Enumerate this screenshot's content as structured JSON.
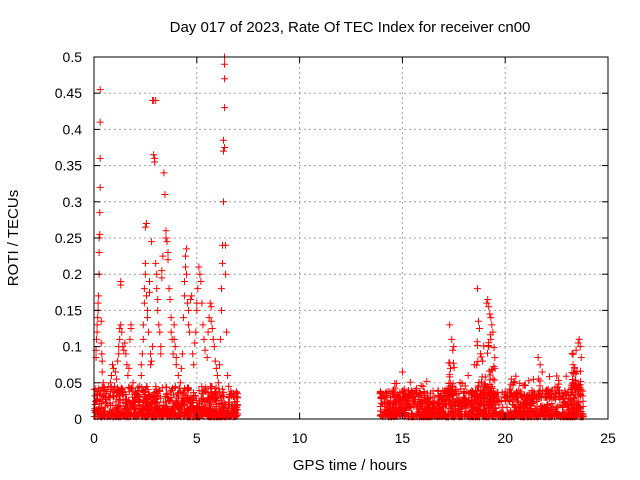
{
  "chart_data": {
    "type": "scatter",
    "title": "Day 017 of 2023, Rate Of TEC Index for receiver cn00",
    "xlabel": "GPS time / hours",
    "ylabel": "ROTI / TECUs",
    "xlim": [
      0,
      25
    ],
    "ylim": [
      0,
      0.5
    ],
    "xticks": [
      0,
      5,
      10,
      15,
      20,
      25
    ],
    "yticks": [
      0,
      0.05,
      0.1,
      0.15,
      0.2,
      0.25,
      0.3,
      0.35,
      0.4,
      0.45,
      0.5
    ],
    "grid": true,
    "marker": "+",
    "color": "#ff0000",
    "series": [
      {
        "points": [
          [
            0.05,
            0.02
          ],
          [
            0.1,
            0.085
          ],
          [
            0.1,
            0.095
          ],
          [
            0.12,
            0.11
          ],
          [
            0.15,
            0.12
          ],
          [
            0.15,
            0.13
          ],
          [
            0.18,
            0.14
          ],
          [
            0.2,
            0.15
          ],
          [
            0.2,
            0.16
          ],
          [
            0.22,
            0.17
          ],
          [
            0.25,
            0.2
          ],
          [
            0.25,
            0.23
          ],
          [
            0.25,
            0.25
          ],
          [
            0.28,
            0.255
          ],
          [
            0.28,
            0.285
          ],
          [
            0.3,
            0.32
          ],
          [
            0.3,
            0.36
          ],
          [
            0.3,
            0.41
          ],
          [
            0.3,
            0.455
          ],
          [
            0.35,
            0.135
          ],
          [
            0.35,
            0.105
          ],
          [
            0.38,
            0.09
          ],
          [
            0.4,
            0.08
          ],
          [
            0.4,
            0.065
          ],
          [
            0.45,
            0.05
          ],
          [
            0.5,
            0.04
          ],
          [
            0.55,
            0.03
          ],
          [
            0.6,
            0.035
          ],
          [
            0.7,
            0.03
          ],
          [
            0.8,
            0.05
          ],
          [
            0.85,
            0.06
          ],
          [
            0.9,
            0.075
          ],
          [
            0.95,
            0.07
          ],
          [
            1.0,
            0.045
          ],
          [
            1.05,
            0.065
          ],
          [
            1.1,
            0.055
          ],
          [
            1.15,
            0.08
          ],
          [
            1.2,
            0.09
          ],
          [
            1.2,
            0.1
          ],
          [
            1.25,
            0.11
          ],
          [
            1.25,
            0.125
          ],
          [
            1.3,
            0.13
          ],
          [
            1.3,
            0.19
          ],
          [
            1.3,
            0.185
          ],
          [
            1.35,
            0.12
          ],
          [
            1.4,
            0.1
          ],
          [
            1.45,
            0.095
          ],
          [
            1.5,
            0.105
          ],
          [
            1.55,
            0.09
          ],
          [
            1.6,
            0.075
          ],
          [
            1.65,
            0.06
          ],
          [
            1.7,
            0.07
          ],
          [
            1.75,
            0.11
          ],
          [
            1.8,
            0.125
          ],
          [
            1.8,
            0.13
          ],
          [
            1.9,
            0.05
          ],
          [
            2.0,
            0.035
          ],
          [
            2.1,
            0.03
          ],
          [
            2.2,
            0.045
          ],
          [
            2.3,
            0.06
          ],
          [
            2.3,
            0.075
          ],
          [
            2.35,
            0.09
          ],
          [
            2.4,
            0.11
          ],
          [
            2.4,
            0.13
          ],
          [
            2.45,
            0.16
          ],
          [
            2.45,
            0.18
          ],
          [
            2.5,
            0.2
          ],
          [
            2.5,
            0.215
          ],
          [
            2.5,
            0.265
          ],
          [
            2.55,
            0.27
          ],
          [
            2.55,
            0.17
          ],
          [
            2.6,
            0.15
          ],
          [
            2.6,
            0.14
          ],
          [
            2.65,
            0.12
          ],
          [
            2.7,
            0.19
          ],
          [
            2.7,
            0.175
          ],
          [
            2.75,
            0.09
          ],
          [
            2.75,
            0.075
          ],
          [
            2.8,
            0.245
          ],
          [
            2.8,
            0.08
          ],
          [
            2.85,
            0.1
          ],
          [
            2.85,
            0.44
          ],
          [
            2.9,
            0.44
          ],
          [
            2.9,
            0.365
          ],
          [
            2.95,
            0.36
          ],
          [
            2.95,
            0.355
          ],
          [
            3.0,
            0.44
          ],
          [
            3.0,
            0.215
          ],
          [
            3.05,
            0.2
          ],
          [
            3.05,
            0.18
          ],
          [
            3.1,
            0.165
          ],
          [
            3.1,
            0.15
          ],
          [
            3.15,
            0.13
          ],
          [
            3.2,
            0.12
          ],
          [
            3.25,
            0.1
          ],
          [
            3.25,
            0.09
          ],
          [
            3.3,
            0.205
          ],
          [
            3.3,
            0.195
          ],
          [
            3.35,
            0.225
          ],
          [
            3.4,
            0.34
          ],
          [
            3.45,
            0.31
          ],
          [
            3.5,
            0.26
          ],
          [
            3.5,
            0.25
          ],
          [
            3.55,
            0.245
          ],
          [
            3.6,
            0.23
          ],
          [
            3.6,
            0.22
          ],
          [
            3.65,
            0.18
          ],
          [
            3.7,
            0.165
          ],
          [
            3.75,
            0.14
          ],
          [
            3.75,
            0.12
          ],
          [
            3.8,
            0.11
          ],
          [
            3.85,
            0.09
          ],
          [
            3.9,
            0.13
          ],
          [
            3.9,
            0.11
          ],
          [
            3.95,
            0.1
          ],
          [
            4.0,
            0.085
          ],
          [
            4.0,
            0.075
          ],
          [
            4.1,
            0.06
          ],
          [
            4.2,
            0.05
          ],
          [
            4.25,
            0.07
          ],
          [
            4.3,
            0.09
          ],
          [
            4.35,
            0.14
          ],
          [
            4.4,
            0.17
          ],
          [
            4.4,
            0.19
          ],
          [
            4.45,
            0.21
          ],
          [
            4.45,
            0.225
          ],
          [
            4.5,
            0.235
          ],
          [
            4.5,
            0.2
          ],
          [
            4.55,
            0.16
          ],
          [
            4.6,
            0.15
          ],
          [
            4.6,
            0.13
          ],
          [
            4.65,
            0.12
          ],
          [
            4.7,
            0.165
          ],
          [
            4.75,
            0.17
          ],
          [
            4.8,
            0.09
          ],
          [
            4.85,
            0.075
          ],
          [
            4.9,
            0.105
          ],
          [
            4.95,
            0.12
          ],
          [
            5.0,
            0.15
          ],
          [
            5.0,
            0.16
          ],
          [
            5.05,
            0.18
          ],
          [
            5.1,
            0.21
          ],
          [
            5.15,
            0.2
          ],
          [
            5.2,
            0.19
          ],
          [
            5.25,
            0.16
          ],
          [
            5.3,
            0.13
          ],
          [
            5.35,
            0.11
          ],
          [
            5.4,
            0.095
          ],
          [
            5.5,
            0.085
          ],
          [
            5.55,
            0.12
          ],
          [
            5.6,
            0.14
          ],
          [
            5.65,
            0.16
          ],
          [
            5.7,
            0.155
          ],
          [
            5.7,
            0.135
          ],
          [
            5.75,
            0.125
          ],
          [
            5.8,
            0.11
          ],
          [
            5.85,
            0.1
          ],
          [
            5.9,
            0.08
          ],
          [
            5.95,
            0.07
          ],
          [
            6.0,
            0.06
          ],
          [
            6.05,
            0.05
          ],
          [
            6.1,
            0.075
          ],
          [
            6.15,
            0.11
          ],
          [
            6.2,
            0.15
          ],
          [
            6.2,
            0.18
          ],
          [
            6.25,
            0.215
          ],
          [
            6.25,
            0.24
          ],
          [
            6.3,
            0.3
          ],
          [
            6.3,
            0.37
          ],
          [
            6.3,
            0.385
          ],
          [
            6.35,
            0.375
          ],
          [
            6.35,
            0.43
          ],
          [
            6.35,
            0.47
          ],
          [
            6.35,
            0.49
          ],
          [
            6.35,
            0.5
          ],
          [
            6.4,
            0.24
          ],
          [
            6.4,
            0.2
          ],
          [
            6.45,
            0.12
          ],
          [
            6.5,
            0.06
          ],
          [
            6.55,
            0.045
          ],
          [
            6.6,
            0.03
          ],
          [
            6.7,
            0.02
          ],
          [
            6.8,
            0.015
          ],
          [
            6.9,
            0.012
          ]
        ]
      }
    ],
    "clusters": [
      {
        "x0": 0.0,
        "x1": 7.0,
        "y0": 0.003,
        "y1": 0.045,
        "n": 900
      },
      {
        "x0": 13.9,
        "x1": 23.8,
        "y0": 0.003,
        "y1": 0.04,
        "n": 1100
      },
      {
        "x0": 14.5,
        "x1": 19.5,
        "y0": 0.02,
        "y1": 0.055,
        "n": 120
      },
      {
        "x0": 17.2,
        "x1": 17.6,
        "y0": 0.03,
        "y1": 0.09,
        "n": 25
      },
      {
        "x0": 18.6,
        "x1": 19.5,
        "y0": 0.03,
        "y1": 0.12,
        "n": 40
      },
      {
        "x0": 20.0,
        "x1": 23.0,
        "y0": 0.03,
        "y1": 0.06,
        "n": 60
      },
      {
        "x0": 23.2,
        "x1": 23.7,
        "y0": 0.04,
        "y1": 0.1,
        "n": 40
      }
    ],
    "extra_points": [
      [
        14.0,
        0.035
      ],
      [
        15.0,
        0.065
      ],
      [
        16.0,
        0.045
      ],
      [
        17.3,
        0.13
      ],
      [
        17.4,
        0.11
      ],
      [
        17.45,
        0.095
      ],
      [
        17.5,
        0.1
      ],
      [
        18.2,
        0.06
      ],
      [
        18.5,
        0.075
      ],
      [
        18.65,
        0.18
      ],
      [
        18.7,
        0.135
      ],
      [
        18.75,
        0.125
      ],
      [
        18.8,
        0.09
      ],
      [
        18.9,
        0.08
      ],
      [
        19.1,
        0.16
      ],
      [
        19.15,
        0.165
      ],
      [
        19.2,
        0.155
      ],
      [
        19.25,
        0.145
      ],
      [
        19.3,
        0.14
      ],
      [
        19.35,
        0.13
      ],
      [
        19.4,
        0.12
      ],
      [
        19.3,
        0.11
      ],
      [
        19.2,
        0.1
      ],
      [
        19.5,
        0.07
      ],
      [
        20.3,
        0.055
      ],
      [
        21.6,
        0.085
      ],
      [
        21.7,
        0.075
      ],
      [
        21.8,
        0.065
      ],
      [
        23.3,
        0.075
      ],
      [
        23.45,
        0.095
      ],
      [
        23.55,
        0.105
      ],
      [
        23.6,
        0.11
      ],
      [
        23.65,
        0.1
      ],
      [
        23.7,
        0.085
      ]
    ]
  }
}
